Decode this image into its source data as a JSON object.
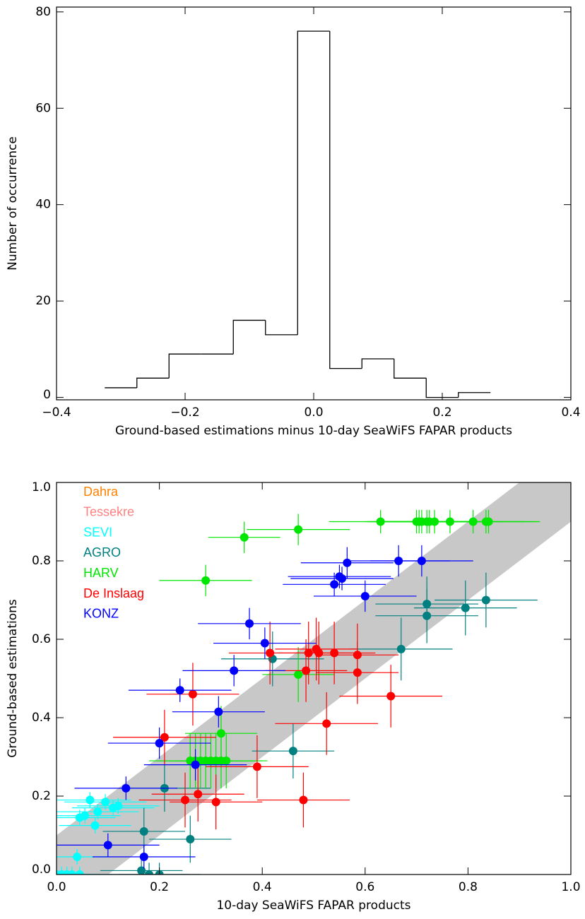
{
  "chart_data": [
    {
      "type": "histogram",
      "xlabel": "Ground-based estimations minus 10-day SeaWiFS FAPAR products",
      "ylabel": "Number of occurrence",
      "bins": [
        -0.325,
        -0.275,
        -0.225,
        -0.175,
        -0.125,
        -0.075,
        -0.025,
        0.025,
        0.075,
        0.125,
        0.175,
        0.225,
        0.275
      ],
      "values": [
        2,
        4,
        9,
        9,
        16,
        13,
        76,
        6,
        8,
        4,
        0,
        1
      ],
      "color": "#000000",
      "xlim": [
        -0.4,
        0.4
      ],
      "xticks": [
        {
          "value": -0.4,
          "label": "−0.4"
        },
        {
          "value": -0.2,
          "label": "−0.2"
        },
        {
          "value": 0,
          "label": "0.0"
        },
        {
          "value": 0.2,
          "label": "0.2"
        },
        {
          "value": 0.4,
          "label": "0.4"
        }
      ],
      "ylim": [
        -0.5,
        81
      ],
      "yticks": [
        0,
        20,
        40,
        60,
        80
      ]
    },
    {
      "type": "scatter",
      "xlabel": "10-day SeaWiFS FAPAR products",
      "ylabel": "Ground-based estimations",
      "xlim": [
        0,
        1
      ],
      "ylim": [
        0,
        1
      ],
      "xticks": [
        {
          "value": 0,
          "label": "0.0"
        },
        {
          "value": 0.2,
          "label": "0.2"
        },
        {
          "value": 0.4,
          "label": "0.4"
        },
        {
          "value": 0.6,
          "label": "0.6"
        },
        {
          "value": 0.8,
          "label": "0.8"
        },
        {
          "value": 1,
          "label": "1.0"
        }
      ],
      "yticks": [
        {
          "value": 0,
          "label": "0.0"
        },
        {
          "value": 0.2,
          "label": "0.2"
        },
        {
          "value": 0.4,
          "label": "0.4"
        },
        {
          "value": 0.6,
          "label": "0.6"
        },
        {
          "value": 0.8,
          "label": "0.8"
        },
        {
          "value": 1,
          "label": "1.0"
        }
      ],
      "series": [
        {
          "name": "Dahra",
          "color": "#ff8000",
          "x": [],
          "y": [],
          "xerr": [],
          "yerr": []
        },
        {
          "name": "Tessekre",
          "color": "#ff8080",
          "x": [],
          "y": [],
          "xerr": [],
          "yerr": []
        },
        {
          "name": "SEVI",
          "color": "#00ffff",
          "x": [
            0.065,
            0.095,
            0.11,
            0.12,
            0.055,
            0.045,
            0.08,
            0.075,
            0.04,
            0.0,
            0.01,
            0.02,
            0.03,
            0.045
          ],
          "y": [
            0.19,
            0.185,
            0.17,
            0.175,
            0.15,
            0.145,
            0.16,
            0.125,
            0.045,
            0.0,
            0.0,
            0.0,
            0.0,
            0.0
          ],
          "xerr": [
            0.08,
            0.08,
            0.08,
            0.08,
            0.07,
            0.07,
            0.08,
            0.07,
            0.06,
            0.06,
            0.06,
            0.06,
            0.06,
            0.06
          ],
          "yerr": [
            0.02,
            0.02,
            0.02,
            0.02,
            0.02,
            0.02,
            0.02,
            0.02,
            0.02,
            0.02,
            0.02,
            0.02,
            0.02,
            0.02
          ]
        },
        {
          "name": "AGRO",
          "color": "#008080",
          "x": [
            0.835,
            0.795,
            0.72,
            0.72,
            0.67,
            0.42,
            0.46,
            0.21,
            0.17,
            0.26,
            0.165,
            0.18,
            0.2
          ],
          "y": [
            0.7,
            0.68,
            0.69,
            0.66,
            0.575,
            0.55,
            0.315,
            0.22,
            0.11,
            0.09,
            0.01,
            0.0,
            0.0
          ],
          "xerr": [
            0.1,
            0.1,
            0.1,
            0.1,
            0.1,
            0.1,
            0.08,
            0.09,
            0.08,
            0.08,
            0.08,
            0.08,
            0.08
          ],
          "yerr": [
            0.07,
            0.07,
            0.07,
            0.07,
            0.08,
            0.07,
            0.07,
            0.06,
            0.06,
            0.06,
            0.03,
            0.03,
            0.03
          ]
        },
        {
          "name": "HARV",
          "color": "#00e600",
          "x": [
            0.63,
            0.7,
            0.705,
            0.71,
            0.72,
            0.725,
            0.735,
            0.765,
            0.81,
            0.835,
            0.84,
            0.47,
            0.365,
            0.29,
            0.47,
            0.32,
            0.26,
            0.27,
            0.28,
            0.29,
            0.3,
            0.31,
            0.32,
            0.33
          ],
          "y": [
            0.9,
            0.9,
            0.9,
            0.9,
            0.9,
            0.9,
            0.9,
            0.9,
            0.9,
            0.9,
            0.9,
            0.88,
            0.86,
            0.75,
            0.51,
            0.36,
            0.29,
            0.29,
            0.29,
            0.29,
            0.29,
            0.29,
            0.29,
            0.29
          ],
          "xerr": [
            0.1,
            0.1,
            0.1,
            0.1,
            0.1,
            0.1,
            0.1,
            0.1,
            0.1,
            0.1,
            0.1,
            0.1,
            0.07,
            0.09,
            0.07,
            0.07,
            0.08,
            0.08,
            0.08,
            0.08,
            0.08,
            0.08,
            0.08,
            0.08
          ],
          "yerr": [
            0.03,
            0.03,
            0.03,
            0.03,
            0.03,
            0.03,
            0.03,
            0.03,
            0.03,
            0.03,
            0.03,
            0.04,
            0.04,
            0.04,
            0.07,
            0.07,
            0.07,
            0.07,
            0.07,
            0.07,
            0.07,
            0.07,
            0.07,
            0.07
          ]
        },
        {
          "name": "De Inslaag",
          "color": "#ff0000",
          "x": [
            0.415,
            0.49,
            0.505,
            0.51,
            0.54,
            0.585,
            0.485,
            0.585,
            0.65,
            0.525,
            0.265,
            0.21,
            0.39,
            0.275,
            0.25,
            0.31,
            0.48
          ],
          "y": [
            0.565,
            0.565,
            0.575,
            0.565,
            0.565,
            0.56,
            0.52,
            0.515,
            0.455,
            0.385,
            0.46,
            0.35,
            0.275,
            0.205,
            0.19,
            0.185,
            0.19
          ],
          "xerr": [
            0.08,
            0.08,
            0.08,
            0.08,
            0.08,
            0.08,
            0.08,
            0.08,
            0.1,
            0.1,
            0.09,
            0.1,
            0.1,
            0.09,
            0.09,
            0.09,
            0.09
          ],
          "yerr": [
            0.08,
            0.08,
            0.08,
            0.08,
            0.08,
            0.08,
            0.08,
            0.08,
            0.08,
            0.08,
            0.08,
            0.07,
            0.08,
            0.07,
            0.07,
            0.07,
            0.07
          ]
        },
        {
          "name": "KONZ",
          "color": "#0000ff",
          "x": [
            0.565,
            0.55,
            0.555,
            0.54,
            0.665,
            0.71,
            0.6,
            0.375,
            0.405,
            0.345,
            0.24,
            0.315,
            0.2,
            0.27,
            0.135,
            0.1,
            0.17
          ],
          "y": [
            0.795,
            0.76,
            0.755,
            0.74,
            0.8,
            0.8,
            0.71,
            0.64,
            0.59,
            0.52,
            0.47,
            0.415,
            0.335,
            0.28,
            0.22,
            0.075,
            0.045
          ],
          "xerr": [
            0.09,
            0.1,
            0.1,
            0.1,
            0.1,
            0.1,
            0.1,
            0.1,
            0.1,
            0.1,
            0.1,
            0.09,
            0.1,
            0.1,
            0.1,
            0.1,
            0.1
          ],
          "yerr": [
            0.04,
            0.03,
            0.03,
            0.03,
            0.04,
            0.04,
            0.04,
            0.04,
            0.04,
            0.04,
            0.03,
            0.04,
            0.04,
            0.04,
            0.03,
            0.03,
            0.03
          ]
        }
      ]
    }
  ]
}
